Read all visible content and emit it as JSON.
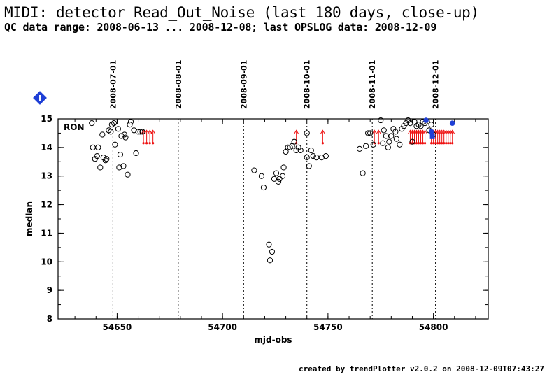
{
  "header": {
    "title": "MIDI: detector Read_Out_Noise (last 180 days, close-up)",
    "subtitle": "QC data range: 2008-06-13 ... 2008-12-08; last OPSLOG data: 2008-12-09"
  },
  "footer": {
    "credit": "created by trendPlotter v2.0.2 on 2008-12-09T07:43:27"
  },
  "info_badge": {
    "label": "i",
    "color": "#1f3fd6"
  },
  "colors": {
    "points": "#000000",
    "arrows": "#ee1111",
    "highlight": "#1f3fd6",
    "grid": "#000000"
  },
  "chart_data": {
    "type": "scatter",
    "title": "",
    "xlabel": "mjd-obs",
    "ylabel": "median",
    "panel_label": "RON",
    "xlim": [
      54622,
      54826
    ],
    "ylim": [
      8,
      15
    ],
    "xticks": [
      54650,
      54700,
      54750,
      54800
    ],
    "yticks": [
      8,
      9,
      10,
      11,
      12,
      13,
      14,
      15
    ],
    "grid": false,
    "date_markers": [
      {
        "x": 54648,
        "label": "2008-07-01"
      },
      {
        "x": 54679,
        "label": "2008-08-01"
      },
      {
        "x": 54710,
        "label": "2008-09-01"
      },
      {
        "x": 54740,
        "label": "2008-10-01"
      },
      {
        "x": 54771,
        "label": "2008-11-01"
      },
      {
        "x": 54801,
        "label": "2008-12-01"
      }
    ],
    "series": [
      {
        "name": "",
        "marker": "open-circle",
        "points": [
          [
            54638,
            14.85
          ],
          [
            54638.5,
            14.0
          ],
          [
            54639.5,
            13.6
          ],
          [
            54640.5,
            13.7
          ],
          [
            54641,
            14.0
          ],
          [
            54642,
            13.3
          ],
          [
            54643,
            14.45
          ],
          [
            54643.5,
            13.65
          ],
          [
            54644.5,
            13.55
          ],
          [
            54645,
            13.6
          ],
          [
            54646,
            14.6
          ],
          [
            54647,
            14.55
          ],
          [
            54647.5,
            14.8
          ],
          [
            54648.5,
            14.85
          ],
          [
            54649,
            14.1
          ],
          [
            54650.5,
            14.65
          ],
          [
            54651,
            13.3
          ],
          [
            54651.5,
            13.75
          ],
          [
            54652,
            14.4
          ],
          [
            54653,
            13.35
          ],
          [
            54653.5,
            14.45
          ],
          [
            54654,
            14.35
          ],
          [
            54655,
            13.05
          ],
          [
            54656,
            14.8
          ],
          [
            54656.5,
            14.9
          ],
          [
            54658,
            14.6
          ],
          [
            54659,
            13.8
          ],
          [
            54660,
            14.55
          ],
          [
            54661,
            14.55
          ],
          [
            54662,
            14.55
          ],
          [
            54715,
            13.2
          ],
          [
            54718.5,
            13.0
          ],
          [
            54719.5,
            12.6
          ],
          [
            54722,
            10.6
          ],
          [
            54722.5,
            10.05
          ],
          [
            54723.5,
            10.35
          ],
          [
            54724.5,
            12.9
          ],
          [
            54725.5,
            13.1
          ],
          [
            54726.5,
            12.8
          ],
          [
            54727,
            12.9
          ],
          [
            54728.5,
            13.0
          ],
          [
            54729,
            13.3
          ],
          [
            54730,
            13.85
          ],
          [
            54731,
            14.0
          ],
          [
            54732,
            14.0
          ],
          [
            54733,
            14.05
          ],
          [
            54734,
            14.2
          ],
          [
            54735,
            13.9
          ],
          [
            54736,
            14.0
          ],
          [
            54737,
            13.9
          ],
          [
            54740,
            13.65
          ],
          [
            54740,
            14.5
          ],
          [
            54741,
            13.35
          ],
          [
            54742,
            13.9
          ],
          [
            54743,
            13.7
          ],
          [
            54744.5,
            13.65
          ],
          [
            54747,
            13.65
          ],
          [
            54749,
            13.7
          ],
          [
            54765,
            13.95
          ],
          [
            54766.5,
            13.1
          ],
          [
            54768,
            14.05
          ],
          [
            54769,
            14.5
          ],
          [
            54770,
            14.5
          ],
          [
            54771.5,
            14.1
          ],
          [
            54775,
            14.95
          ],
          [
            54776,
            14.15
          ],
          [
            54776.5,
            14.6
          ],
          [
            54777.5,
            14.4
          ],
          [
            54778.5,
            14.0
          ],
          [
            54779,
            14.2
          ],
          [
            54780,
            14.4
          ],
          [
            54781,
            14.65
          ],
          [
            54782,
            14.55
          ],
          [
            54782.5,
            14.3
          ],
          [
            54784,
            14.1
          ],
          [
            54785,
            14.65
          ],
          [
            54786,
            14.75
          ],
          [
            54787,
            14.85
          ],
          [
            54788,
            14.95
          ],
          [
            54789,
            14.85
          ],
          [
            54790,
            14.2
          ],
          [
            54791,
            14.9
          ],
          [
            54792,
            14.75
          ],
          [
            54793,
            14.8
          ],
          [
            54794,
            14.75
          ],
          [
            54795,
            14.9
          ],
          [
            54796,
            14.85
          ],
          [
            54797,
            14.9
          ],
          [
            54798,
            14.6
          ],
          [
            54799,
            14.8
          ],
          [
            54800,
            14.45
          ]
        ]
      },
      {
        "name": "",
        "marker": "filled-circle",
        "points": [
          [
            54796.5,
            14.95
          ],
          [
            54809,
            14.85
          ],
          [
            54799,
            14.55
          ]
        ]
      },
      {
        "name": "",
        "marker": "filled-square",
        "points": [
          [
            54799.5,
            14.38
          ]
        ]
      }
    ],
    "outliers_above": [
      54662.5,
      54664,
      54665.5,
      54667,
      54735,
      54747.5,
      54772,
      54774,
      54789,
      54790,
      54791,
      54792,
      54793,
      54794,
      54795,
      54796,
      54799,
      54800,
      54801,
      54802,
      54803,
      54804,
      54805,
      54806,
      54807,
      54808,
      54809
    ]
  }
}
